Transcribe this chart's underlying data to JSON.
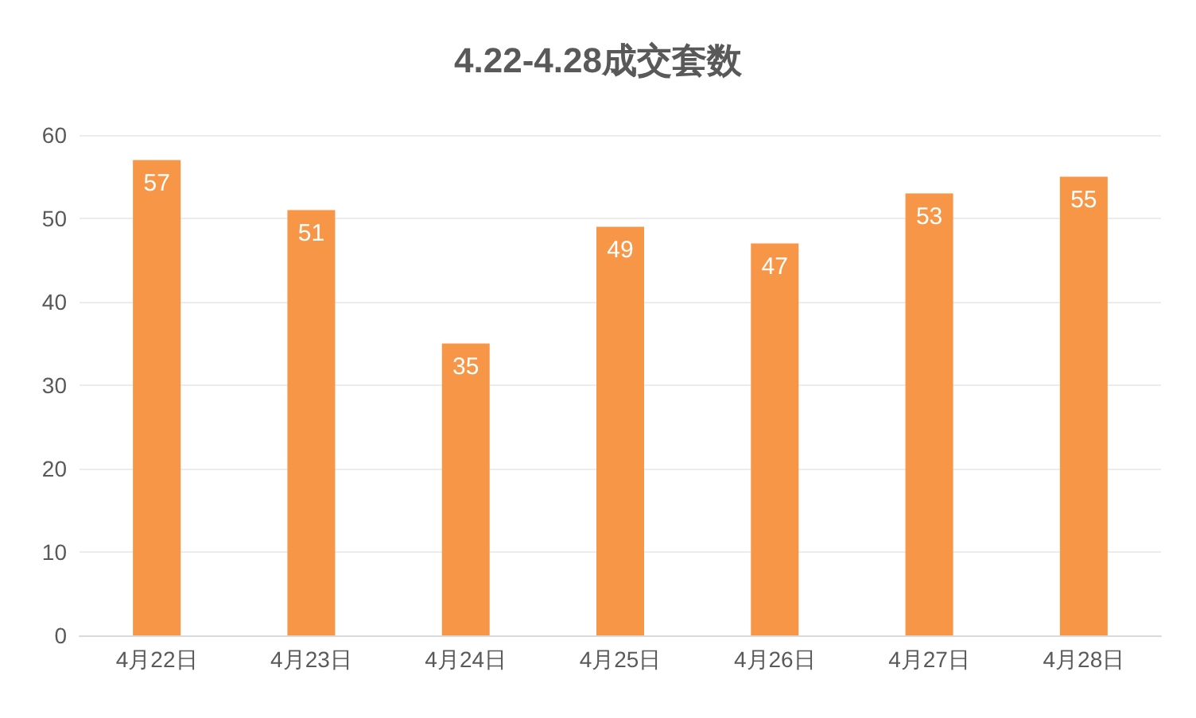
{
  "chart_data": {
    "type": "bar",
    "title": "4.22-4.28成交套数",
    "categories": [
      "4月22日",
      "4月23日",
      "4月24日",
      "4月25日",
      "4月26日",
      "4月27日",
      "4月28日"
    ],
    "values": [
      57,
      51,
      35,
      49,
      47,
      53,
      55
    ],
    "color": "#f79646",
    "ylim": [
      0,
      60
    ],
    "yticks": [
      0,
      10,
      20,
      30,
      40,
      50,
      60
    ],
    "grid": "y",
    "data_labels": true
  }
}
